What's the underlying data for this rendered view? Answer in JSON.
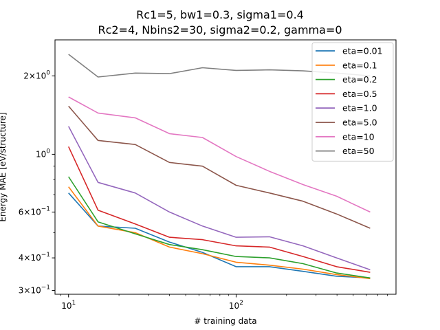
{
  "chart_data": {
    "type": "line",
    "title_line1": "Rc1=5, bw1=0.3, sigma1=0.4",
    "title_line2": "Rc2=4, Nbins2=30, sigma2=0.2, gamma=0",
    "xlabel": "# training data",
    "ylabel": "Energy MAE [eV/structure]",
    "xscale": "log",
    "yscale": "log",
    "xlim": [
      8.3,
      900
    ],
    "ylim": [
      0.29,
      2.75
    ],
    "x_ticks": [
      {
        "value": 10,
        "base": "10",
        "exp": "1"
      },
      {
        "value": 100,
        "base": "10",
        "exp": "2"
      }
    ],
    "y_ticks": [
      {
        "value": 0.3,
        "mant": "3",
        "base": "10",
        "exp": "−1"
      },
      {
        "value": 0.4,
        "mant": "4",
        "base": "10",
        "exp": "−1"
      },
      {
        "value": 0.6,
        "mant": "6",
        "base": "10",
        "exp": "−1"
      },
      {
        "value": 1.0,
        "mant": "",
        "base": "10",
        "exp": "0"
      },
      {
        "value": 2.0,
        "mant": "2",
        "base": "10",
        "exp": "0"
      }
    ],
    "grid": false,
    "legend_position": "top-right",
    "x": [
      10,
      15,
      25,
      40,
      63,
      100,
      158,
      251,
      398,
      631
    ],
    "series": [
      {
        "name": "eta=0.01",
        "color": "#1f77b4",
        "values": [
          0.71,
          0.53,
          0.52,
          0.46,
          0.42,
          0.37,
          0.37,
          0.355,
          0.34,
          0.335
        ]
      },
      {
        "name": "eta=0.1",
        "color": "#ff7f0e",
        "values": [
          0.75,
          0.53,
          0.5,
          0.44,
          0.415,
          0.385,
          0.375,
          0.362,
          0.345,
          0.333
        ]
      },
      {
        "name": "eta=0.2",
        "color": "#2ca02c",
        "values": [
          0.82,
          0.55,
          0.495,
          0.45,
          0.43,
          0.405,
          0.4,
          0.38,
          0.35,
          0.335
        ]
      },
      {
        "name": "eta=0.5",
        "color": "#d62728",
        "values": [
          1.07,
          0.61,
          0.54,
          0.48,
          0.47,
          0.445,
          0.44,
          0.405,
          0.37,
          0.352
        ]
      },
      {
        "name": "eta=1.0",
        "color": "#9467bd",
        "values": [
          1.28,
          0.78,
          0.71,
          0.6,
          0.53,
          0.48,
          0.482,
          0.445,
          0.4,
          0.36
        ]
      },
      {
        "name": "eta=5.0",
        "color": "#8c564b",
        "values": [
          1.53,
          1.13,
          1.09,
          0.93,
          0.9,
          0.76,
          0.71,
          0.66,
          0.59,
          0.52
        ]
      },
      {
        "name": "eta=10",
        "color": "#e377c2",
        "values": [
          1.66,
          1.44,
          1.38,
          1.2,
          1.16,
          0.98,
          0.86,
          0.765,
          0.69,
          0.6
        ]
      },
      {
        "name": "eta=50",
        "color": "#7f7f7f",
        "values": [
          2.42,
          1.98,
          2.05,
          2.04,
          2.15,
          2.1,
          2.11,
          2.09,
          2.05,
          2.0
        ]
      }
    ]
  }
}
